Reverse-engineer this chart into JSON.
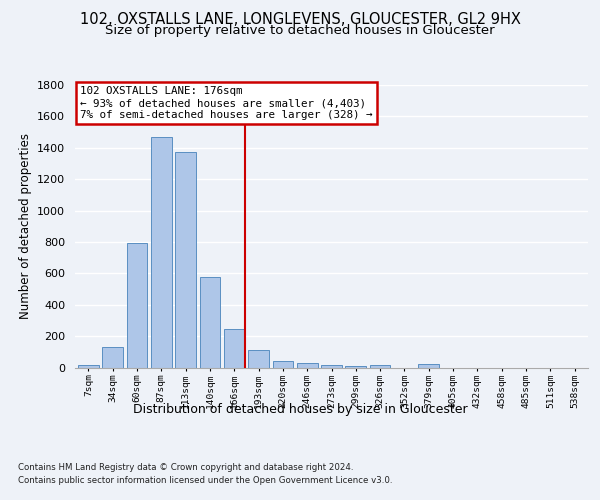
{
  "title1": "102, OXSTALLS LANE, LONGLEVENS, GLOUCESTER, GL2 9HX",
  "title2": "Size of property relative to detached houses in Gloucester",
  "xlabel": "Distribution of detached houses by size in Gloucester",
  "ylabel": "Number of detached properties",
  "categories": [
    "7sqm",
    "34sqm",
    "60sqm",
    "87sqm",
    "113sqm",
    "140sqm",
    "166sqm",
    "193sqm",
    "220sqm",
    "246sqm",
    "273sqm",
    "299sqm",
    "326sqm",
    "352sqm",
    "379sqm",
    "405sqm",
    "432sqm",
    "458sqm",
    "485sqm",
    "511sqm",
    "538sqm"
  ],
  "values": [
    15,
    130,
    795,
    1470,
    1370,
    575,
    245,
    110,
    40,
    28,
    15,
    10,
    15,
    0,
    20,
    0,
    0,
    0,
    0,
    0,
    0
  ],
  "bar_color": "#aec6e8",
  "bar_edge_color": "#5a8fc2",
  "annotation_text": "102 OXSTALLS LANE: 176sqm\n← 93% of detached houses are smaller (4,403)\n7% of semi-detached houses are larger (328) →",
  "annotation_box_color": "#ffffff",
  "annotation_box_edge_color": "#cc0000",
  "footer1": "Contains HM Land Registry data © Crown copyright and database right 2024.",
  "footer2": "Contains public sector information licensed under the Open Government Licence v3.0.",
  "bg_color": "#eef2f8",
  "plot_bg_color": "#eef2f8",
  "ylim": [
    0,
    1800
  ],
  "title1_fontsize": 10.5,
  "title2_fontsize": 9.5,
  "xlabel_fontsize": 9,
  "ylabel_fontsize": 8.5
}
